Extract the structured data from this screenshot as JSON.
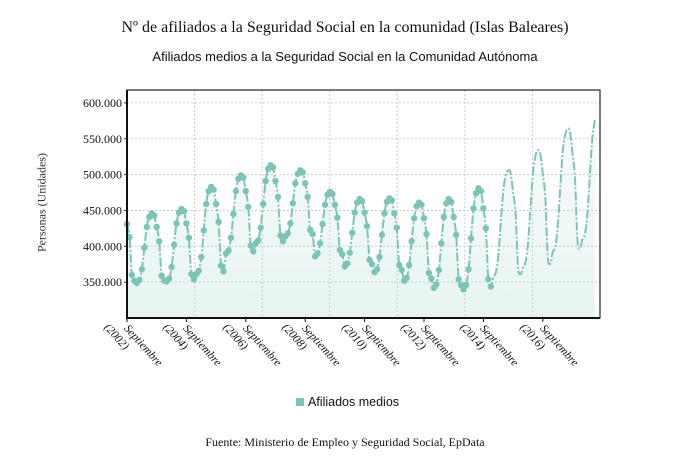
{
  "title": "Nº de afiliados a la Seguridad Social en la comunidad (Islas Baleares)",
  "subtitle": "Afiliados medios a la Seguridad Social en la Comunidad Autónoma",
  "footer": "Fuente: Ministerio de Empleo y Seguridad Social, EpData",
  "chart_data": {
    "type": "line",
    "title": "Afiliados medios a la Seguridad Social en la Comunidad Autónoma",
    "xlabel": "",
    "ylabel": "Personas (Unidades)",
    "ylim": [
      300000,
      618000
    ],
    "yticks": [
      350000,
      400000,
      450000,
      500000,
      550000,
      600000
    ],
    "ytick_labels": [
      "350.000",
      "400.000",
      "450.000",
      "500.000",
      "550.000",
      "600.000"
    ],
    "xtick_labels": [
      {
        "month": "Septiembre",
        "year": "(2002)"
      },
      {
        "month": "Septiembre",
        "year": "(2004)"
      },
      {
        "month": "Septiembre",
        "year": "(2006)"
      },
      {
        "month": "Septiembre",
        "year": "(2008)"
      },
      {
        "month": "Septiembre",
        "year": "(2010)"
      },
      {
        "month": "Septiembre",
        "year": "(2012)"
      },
      {
        "month": "Septiembre",
        "year": "(2014)"
      },
      {
        "month": "Septiembre",
        "year": "(2016)"
      }
    ],
    "grid": true,
    "legend": "bottom",
    "color": "#7cc4b8",
    "series": [
      {
        "name": "Afiliados medios",
        "monthly_by_year": [
          {
            "year": 2002,
            "first_month": 9,
            "values": [
              431000,
              413000,
              360000,
              352000
            ]
          },
          {
            "year": 2003,
            "first_month": 1,
            "values": [
              349000,
              353000,
              368000,
              398000,
              427000,
              441000,
              446000,
              443000,
              427000,
              407000,
              359000,
              352000
            ]
          },
          {
            "year": 2004,
            "first_month": 1,
            "values": [
              351000,
              355000,
              371000,
              402000,
              432000,
              447000,
              452000,
              449000,
              432000,
              412000,
              361000,
              354000
            ]
          },
          {
            "year": 2005,
            "first_month": 1,
            "values": [
              361000,
              366000,
              385000,
              422000,
              459000,
              477000,
              483000,
              479000,
              459000,
              434000,
              373000,
              365000
            ]
          },
          {
            "year": 2006,
            "first_month": 1,
            "values": [
              390000,
              394000,
              412000,
              445000,
              477000,
              494000,
              499000,
              496000,
              477000,
              455000,
              401000,
              393000
            ]
          },
          {
            "year": 2007,
            "first_month": 1,
            "values": [
              404000,
              408000,
              426000,
              459000,
              491000,
              508000,
              513000,
              510000,
              491000,
              469000,
              415000,
              407000
            ]
          },
          {
            "year": 2008,
            "first_month": 1,
            "values": [
              414000,
              418000,
              432000,
              460000,
              488000,
              501000,
              506000,
              503000,
              488000,
              469000,
              423000,
              417000
            ]
          },
          {
            "year": 2009,
            "first_month": 1,
            "values": [
              386000,
              390000,
              404000,
              431000,
              458000,
              472000,
              476000,
              473000,
              458000,
              440000,
              395000,
              389000
            ]
          },
          {
            "year": 2010,
            "first_month": 1,
            "values": [
              372000,
              376000,
              391000,
              419000,
              447000,
              461000,
              466000,
              463000,
              447000,
              428000,
              381000,
              375000
            ]
          },
          {
            "year": 2011,
            "first_month": 1,
            "values": [
              364000,
              368000,
              385000,
              416000,
              446000,
              462000,
              467000,
              464000,
              446000,
              426000,
              374000,
              367000
            ]
          },
          {
            "year": 2012,
            "first_month": 1,
            "values": [
              352000,
              356000,
              374000,
              407000,
              439000,
              456000,
              461000,
              458000,
              439000,
              417000,
              363000,
              355000
            ]
          },
          {
            "year": 2013,
            "first_month": 1,
            "values": [
              342000,
              347000,
              367000,
              404000,
              441000,
              460000,
              466000,
              462000,
              441000,
              416000,
              354000,
              346000
            ]
          },
          {
            "year": 2014,
            "first_month": 1,
            "values": [
              340000,
              346000,
              368000,
              411000,
              453000,
              474000,
              481000,
              477000,
              453000,
              425000,
              354000,
              344000
            ]
          },
          {
            "year": 2015,
            "first_month": 1,
            "values": [
              357000,
              363000,
              387000,
              432000,
              476000,
              499000,
              506000,
              502000,
              476000,
              446000,
              372000,
              361000
            ]
          },
          {
            "year": 2016,
            "first_month": 1,
            "values": [
              371000,
              378000,
              404000,
              453000,
              501000,
              526000,
              534000,
              529000,
              501000,
              469000,
              387000,
              376000
            ]
          },
          {
            "year": 2017,
            "first_month": 1,
            "values": [
              392000,
              399000,
              426000,
              478000,
              530000,
              555000,
              564000,
              559000,
              530000,
              495000,
              409000,
              397000
            ]
          },
          {
            "year": 2018,
            "first_month": 1,
            "values": [
              410000,
              417000,
              445000,
              498000,
              550000,
              576000
            ]
          }
        ]
      }
    ]
  }
}
